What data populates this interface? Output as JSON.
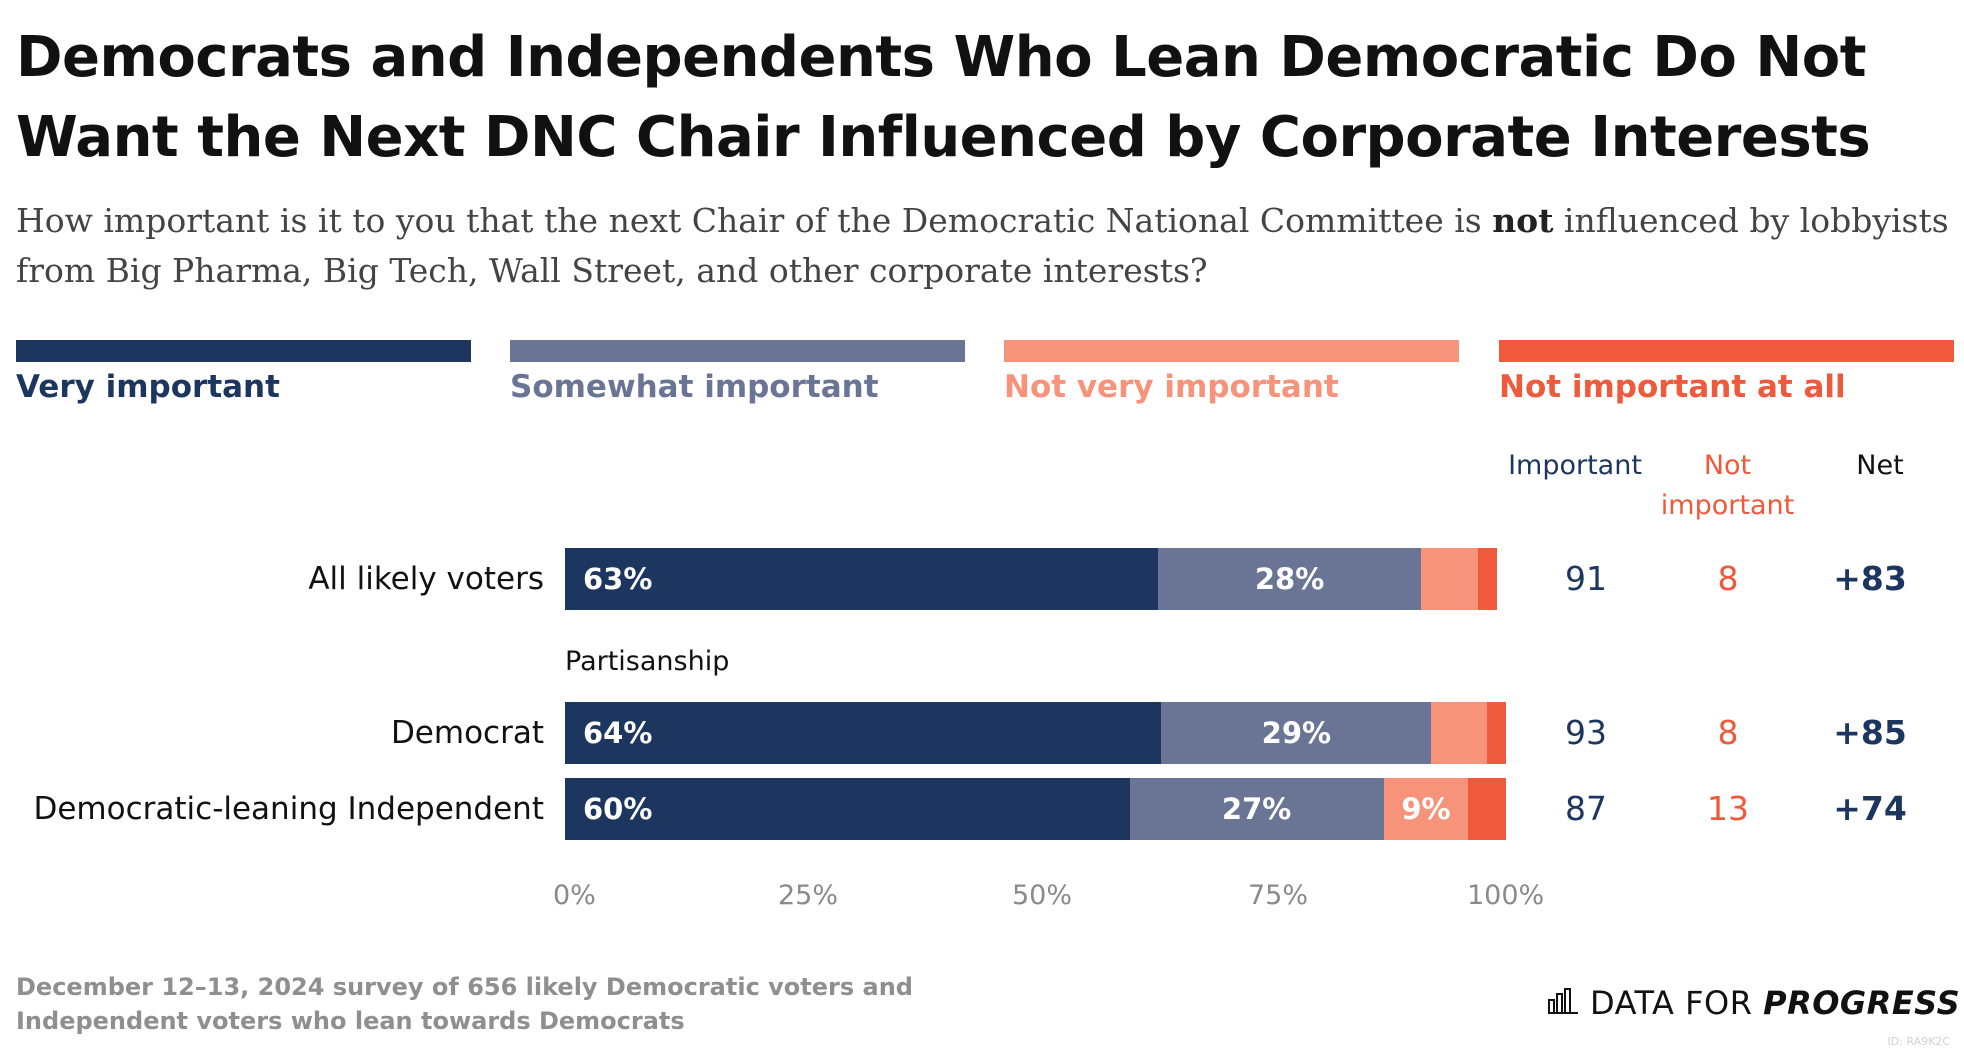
{
  "title": "Democrats and Independents Who Lean Democratic Do Not Want the Next DNC Chair Influenced by Corporate Interests",
  "subtitle": {
    "before": "How important is it to you that the next Chair of the Democratic National Committee is ",
    "emphasis": "not",
    "after": " influenced by lobbyists from Big Pharma, Big Tech, Wall Street, and other corporate interests?"
  },
  "colors": {
    "very_important": "#1d365f",
    "somewhat_important": "#6a7596",
    "not_very_important": "#f8937b",
    "not_important_at_all": "#ef5a3d",
    "important_col": "#1d365f",
    "not_important_col": "#ef5a3d",
    "net_col": "#1d365f"
  },
  "legend": [
    {
      "label": "Very important",
      "color": "#1d365f"
    },
    {
      "label": "Somewhat important",
      "color": "#6a7596"
    },
    {
      "label": "Not very important",
      "color": "#f8937b"
    },
    {
      "label": "Not important at all",
      "color": "#ef5a3d"
    }
  ],
  "columns": {
    "important": "Important",
    "not_important_line1": "Not",
    "not_important_line2": "important",
    "net": "Net"
  },
  "group_label": "Partisanship",
  "chart_data": {
    "type": "bar",
    "orientation": "horizontal",
    "stacked": true,
    "categories": [
      "All likely voters",
      "Democrat",
      "Democratic-leaning Independent"
    ],
    "series": [
      {
        "name": "Very important",
        "values": [
          63,
          64,
          60
        ]
      },
      {
        "name": "Somewhat important",
        "values": [
          28,
          29,
          27
        ]
      },
      {
        "name": "Not very important",
        "values": [
          6,
          6,
          9
        ]
      },
      {
        "name": "Not important at all",
        "values": [
          2,
          2,
          4
        ]
      }
    ],
    "value_labels": [
      [
        "63%",
        "28%",
        "",
        ""
      ],
      [
        "64%",
        "29%",
        "",
        ""
      ],
      [
        "60%",
        "27%",
        "9%",
        ""
      ]
    ],
    "summary": {
      "important": [
        "91",
        "93",
        "87"
      ],
      "not_important": [
        "8",
        "8",
        "13"
      ],
      "net": [
        "+83",
        "+85",
        "+74"
      ]
    },
    "xlim": [
      0,
      100
    ],
    "xticks": [
      "0%",
      "25%",
      "50%",
      "75%",
      "100%"
    ],
    "legend_position": "top"
  },
  "footnote": "December 12–13, 2024 survey of 656 likely Democratic voters and Independent voters who lean towards Democrats",
  "brand": {
    "light": "DATA FOR ",
    "bold": "PROGRESS"
  },
  "watermark": "ID: RA9K2C"
}
